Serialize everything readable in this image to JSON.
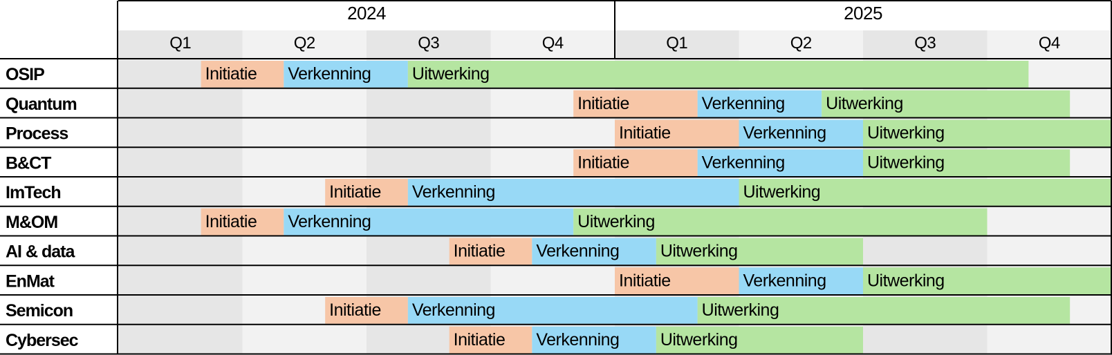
{
  "chart_data": {
    "type": "gantt",
    "years": [
      {
        "label": "2024",
        "quarters": [
          "Q1",
          "Q2",
          "Q3",
          "Q4"
        ]
      },
      {
        "label": "2025",
        "quarters": [
          "Q1",
          "Q2",
          "Q3",
          "Q4"
        ]
      }
    ],
    "x_range_months": [
      0,
      24
    ],
    "phases": [
      {
        "key": "init",
        "label": "Initiatie",
        "color": "#f7c6a7"
      },
      {
        "key": "verk",
        "label": "Verkenning",
        "color": "#98d9f6"
      },
      {
        "key": "uitw",
        "label": "Uitwerking",
        "color": "#b5e5a1"
      }
    ],
    "shading": {
      "odd_quarter": "#e6e6e6",
      "even_quarter": "#f2f2f2"
    },
    "rows": [
      {
        "name": "OSIP",
        "segments": [
          {
            "phase": "init",
            "start": 2,
            "end": 4
          },
          {
            "phase": "verk",
            "start": 4,
            "end": 7
          },
          {
            "phase": "uitw",
            "start": 7,
            "end": 22
          }
        ]
      },
      {
        "name": "Quantum",
        "segments": [
          {
            "phase": "init",
            "start": 11,
            "end": 14
          },
          {
            "phase": "verk",
            "start": 14,
            "end": 17
          },
          {
            "phase": "uitw",
            "start": 17,
            "end": 23
          }
        ]
      },
      {
        "name": "Process",
        "segments": [
          {
            "phase": "init",
            "start": 12,
            "end": 15
          },
          {
            "phase": "verk",
            "start": 15,
            "end": 18
          },
          {
            "phase": "uitw",
            "start": 18,
            "end": 24
          }
        ]
      },
      {
        "name": "B&CT",
        "segments": [
          {
            "phase": "init",
            "start": 11,
            "end": 14
          },
          {
            "phase": "verk",
            "start": 14,
            "end": 18
          },
          {
            "phase": "uitw",
            "start": 18,
            "end": 23
          }
        ]
      },
      {
        "name": "ImTech",
        "segments": [
          {
            "phase": "init",
            "start": 5,
            "end": 7
          },
          {
            "phase": "verk",
            "start": 7,
            "end": 15
          },
          {
            "phase": "uitw",
            "start": 15,
            "end": 24
          }
        ]
      },
      {
        "name": "M&OM",
        "segments": [
          {
            "phase": "init",
            "start": 2,
            "end": 4
          },
          {
            "phase": "verk",
            "start": 4,
            "end": 11
          },
          {
            "phase": "uitw",
            "start": 11,
            "end": 21
          }
        ]
      },
      {
        "name": "AI & data",
        "segments": [
          {
            "phase": "init",
            "start": 8,
            "end": 10
          },
          {
            "phase": "verk",
            "start": 10,
            "end": 13
          },
          {
            "phase": "uitw",
            "start": 13,
            "end": 18
          }
        ]
      },
      {
        "name": "EnMat",
        "segments": [
          {
            "phase": "init",
            "start": 12,
            "end": 15
          },
          {
            "phase": "verk",
            "start": 15,
            "end": 18
          },
          {
            "phase": "uitw",
            "start": 18,
            "end": 24
          }
        ]
      },
      {
        "name": "Semicon",
        "segments": [
          {
            "phase": "init",
            "start": 5,
            "end": 7
          },
          {
            "phase": "verk",
            "start": 7,
            "end": 14
          },
          {
            "phase": "uitw",
            "start": 14,
            "end": 23
          }
        ]
      },
      {
        "name": "Cybersec",
        "segments": [
          {
            "phase": "init",
            "start": 8,
            "end": 10
          },
          {
            "phase": "verk",
            "start": 10,
            "end": 13
          },
          {
            "phase": "uitw",
            "start": 13,
            "end": 18
          }
        ]
      }
    ]
  }
}
